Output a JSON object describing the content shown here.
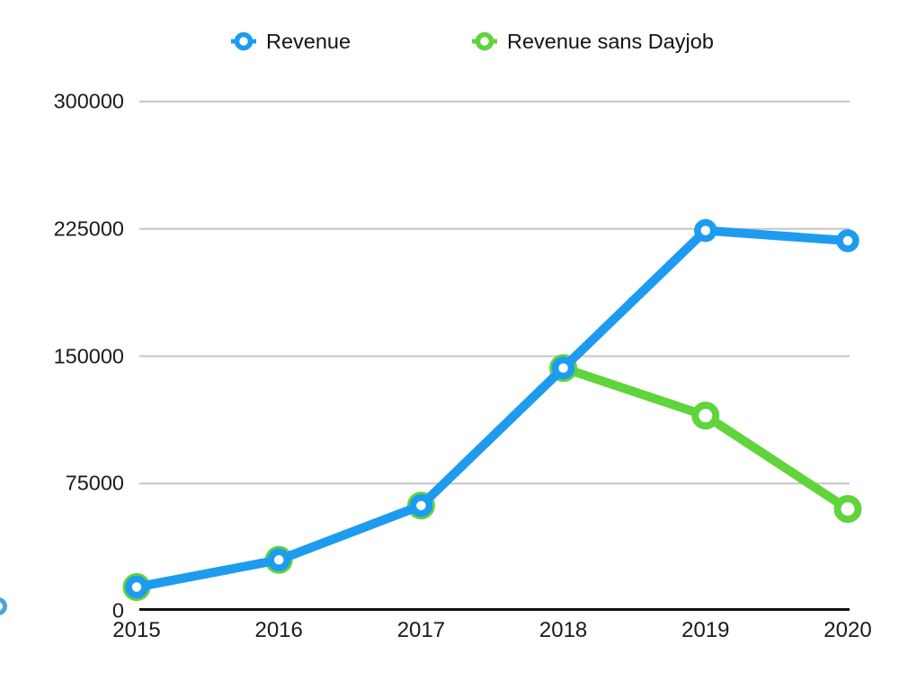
{
  "chart_data": {
    "type": "line",
    "title": "",
    "x": [
      "2015",
      "2016",
      "2017",
      "2018",
      "2019",
      "2020"
    ],
    "series": [
      {
        "name": "Revenue",
        "color": "#1D9BF0",
        "values": [
          14000,
          30000,
          62000,
          143000,
          224000,
          218000
        ]
      },
      {
        "name": "Revenue sans Dayjob",
        "color": "#5FD43B",
        "values": [
          14000,
          30000,
          62000,
          143000,
          115000,
          60000
        ]
      }
    ],
    "ylim": [
      0,
      300000
    ],
    "yticks": [
      0,
      75000,
      150000,
      225000,
      300000
    ],
    "ytick_labels": [
      "0",
      "75000",
      "150000",
      "225000",
      "300000"
    ],
    "grid": "horizontal",
    "grid_color": "#c6c6c6",
    "axis_color": "#111111",
    "text_color": "#1a1a1a",
    "legend_position": "top"
  },
  "legend": {
    "items": [
      {
        "label": "Revenue",
        "color": "#1D9BF0"
      },
      {
        "label": "Revenue sans Dayjob",
        "color": "#5FD43B"
      }
    ]
  },
  "edge_artifact": {
    "clipped_dot_color": "#4DA3DC"
  }
}
